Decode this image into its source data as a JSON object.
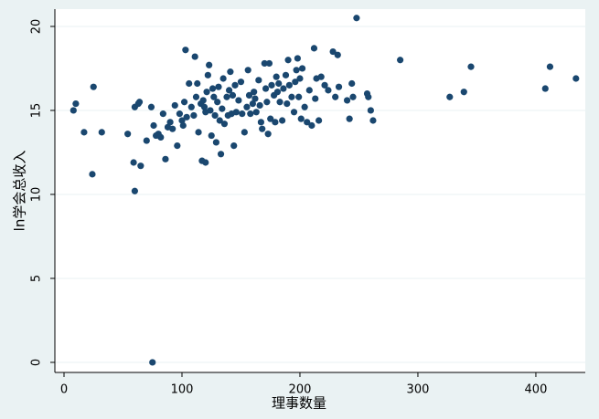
{
  "chart_data": {
    "type": "scatter",
    "x_label": "理事数量",
    "y_label": "ln学会总收入",
    "color": "#1a476f",
    "grid": true,
    "xlim": [
      -7.75,
      441.9
    ],
    "ylim": [
      -0.6,
      21.03
    ],
    "xticks": [
      0,
      100,
      200,
      300,
      400
    ],
    "yticks": [
      0,
      5,
      10,
      15,
      20
    ],
    "x": [
      8,
      10,
      17,
      24,
      25,
      32,
      54,
      59,
      60,
      60,
      63,
      64,
      65,
      70,
      74,
      75,
      76,
      78,
      80,
      82,
      84,
      86,
      88,
      90,
      92,
      94,
      96,
      98,
      100,
      101,
      102,
      103,
      104,
      106,
      108,
      110,
      111,
      112,
      113,
      114,
      116,
      117,
      118,
      119,
      120,
      120,
      121,
      122,
      123,
      124,
      125,
      126,
      127,
      128,
      129,
      130,
      131,
      132,
      133,
      134,
      135,
      136,
      138,
      139,
      140,
      141,
      142,
      143,
      144,
      145,
      146,
      148,
      150,
      151,
      153,
      155,
      156,
      157,
      158,
      160,
      161,
      162,
      163,
      165,
      166,
      167,
      168,
      170,
      171,
      172,
      173,
      174,
      175,
      176,
      178,
      179,
      180,
      181,
      182,
      183,
      185,
      186,
      188,
      189,
      190,
      191,
      193,
      195,
      196,
      197,
      198,
      199,
      200,
      201,
      202,
      204,
      206,
      208,
      210,
      212,
      213,
      214,
      216,
      218,
      221,
      224,
      228,
      230,
      232,
      233,
      240,
      242,
      244,
      245,
      248,
      257,
      258,
      260,
      262,
      285,
      327,
      339,
      345,
      408,
      412,
      434
    ],
    "values": [
      15,
      15.4,
      13.7,
      11.2,
      16.4,
      13.7,
      13.6,
      11.9,
      10.2,
      15.2,
      15.4,
      15.5,
      11.7,
      13.2,
      15.2,
      0,
      14.1,
      13.5,
      13.6,
      13.4,
      14.8,
      12.1,
      14,
      14.3,
      13.9,
      15.3,
      12.9,
      14.8,
      14.4,
      14.1,
      15.5,
      18.6,
      14.6,
      16.6,
      15.2,
      14.7,
      18.2,
      15.8,
      16.6,
      13.7,
      15.4,
      12,
      15.6,
      15.2,
      11.9,
      14.9,
      16.1,
      17.1,
      17.7,
      15,
      13.5,
      16.3,
      15.8,
      14.7,
      13.1,
      15.5,
      16.4,
      14.4,
      12.4,
      15.1,
      16.9,
      14.2,
      15.8,
      14.7,
      16.2,
      17.3,
      14.8,
      15.9,
      12.9,
      16.5,
      14.9,
      15.6,
      16.7,
      14.8,
      13.7,
      15.2,
      17.4,
      15.9,
      14.8,
      15.4,
      16.1,
      15.7,
      14.9,
      16.8,
      15.3,
      14.3,
      13.9,
      17.8,
      16.3,
      15.5,
      13.6,
      17.8,
      14.5,
      16.5,
      15.9,
      14.3,
      17,
      16.1,
      16.6,
      15.5,
      14.4,
      16.3,
      17.1,
      15.4,
      18,
      16.5,
      15.8,
      14.9,
      16.7,
      17.4,
      18.1,
      15.8,
      16.9,
      14.5,
      17.5,
      15.2,
      14.3,
      16.2,
      14.1,
      18.7,
      15.7,
      16.9,
      14.4,
      17,
      16.5,
      16.2,
      18.5,
      15.8,
      18.3,
      16.4,
      15.6,
      14.5,
      16.6,
      15.8,
      20.5,
      16,
      15.8,
      15,
      14.4,
      18,
      15.8,
      16.1,
      17.6,
      16.3,
      17.6,
      16.9
    ]
  }
}
